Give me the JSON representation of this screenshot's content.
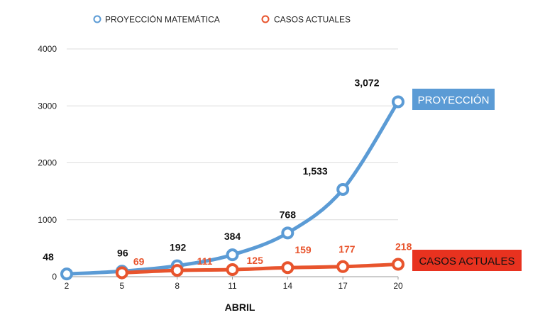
{
  "chart_data": {
    "type": "line",
    "title": "",
    "xlabel": "ABRIL",
    "ylabel": "",
    "x": [
      2,
      5,
      8,
      11,
      14,
      17,
      20
    ],
    "ylim": [
      0,
      4000
    ],
    "yticks": [
      0,
      1000,
      2000,
      3000,
      4000
    ],
    "grid": true,
    "legend_position": "top",
    "series": [
      {
        "name": "PROYECCIÓN MATEMÁTICA",
        "color": "#5b9bd5",
        "values": [
          48,
          96,
          192,
          384,
          768,
          1533,
          3072
        ],
        "labels": [
          "48",
          "96",
          "192",
          "384",
          "768",
          "1,533",
          "3,072"
        ],
        "end_label": "PROYECCIÓN",
        "label_color": "#111111"
      },
      {
        "name": "CASOS ACTUALES",
        "color": "#e8542d",
        "values": [
          null,
          69,
          111,
          125,
          159,
          177,
          218
        ],
        "labels": [
          null,
          "69",
          "111",
          "125",
          "159",
          "177",
          "218"
        ],
        "end_label": "CASOS ACTUALES",
        "label_color": "#e8542d"
      }
    ]
  }
}
